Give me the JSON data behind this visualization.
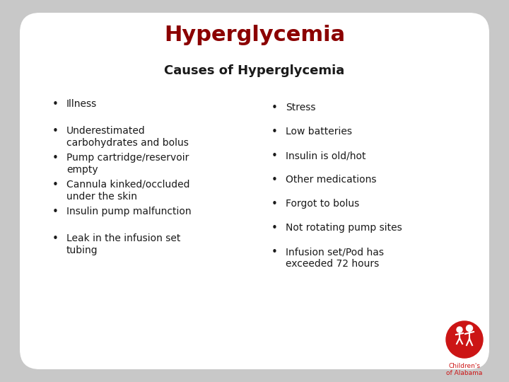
{
  "title": "Hyperglycemia",
  "subtitle": "Causes of Hyperglycemia",
  "title_color": "#8B0000",
  "subtitle_color": "#1a1a1a",
  "text_color": "#1a1a1a",
  "bg_color": "#c8c8c8",
  "slide_bg": "#ffffff",
  "left_bullets": [
    "Illness",
    "Underestimated\ncarbohydrates and bolus",
    "Pump cartridge/reservoir\nempty",
    "Cannula kinked/occluded\nunder the skin",
    "Insulin pump malfunction",
    "Leak in the infusion set\ntubing"
  ],
  "right_bullets": [
    "Stress",
    "Low batteries",
    "Insulin is old/hot",
    "Other medications",
    "Forgot to bolus",
    "Not rotating pump sites",
    "Infusion set/Pod has\nexceeded 72 hours"
  ],
  "logo_color": "#cc1515",
  "logo_text1": "Children's",
  "logo_text2": "of Alabama",
  "title_fontsize": 22,
  "subtitle_fontsize": 13,
  "bullet_fontsize": 10
}
